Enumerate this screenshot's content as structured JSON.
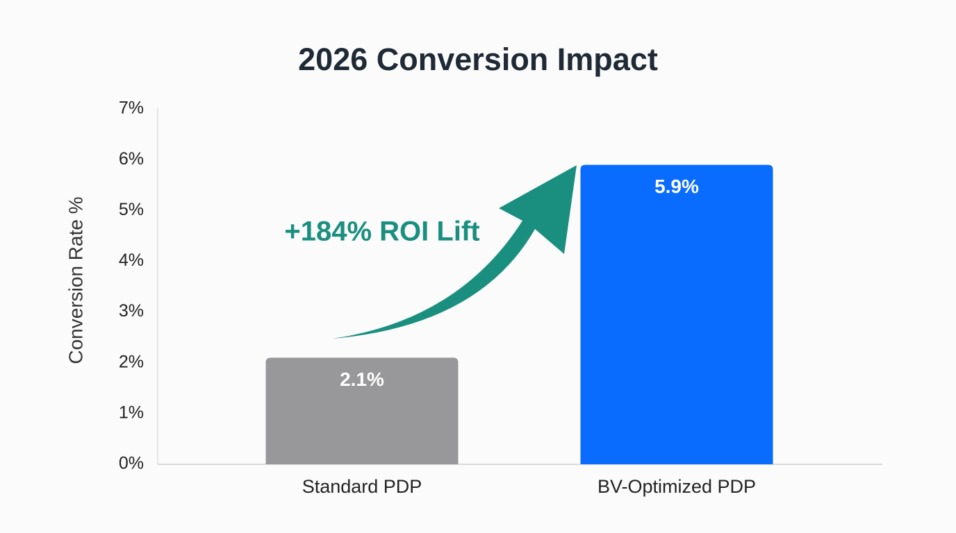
{
  "chart_data": {
    "type": "bar",
    "title": "2026 Conversion Impact",
    "y_label": "Conversion Rate %",
    "annotation": "+184% ROI Lift",
    "categories": [
      "Standard PDP",
      "BV-Optimized PDP"
    ],
    "values": [
      2.1,
      5.9
    ],
    "value_labels": [
      "2.1%",
      "5.9%"
    ],
    "colors": [
      "#98989a",
      "#0a6cff"
    ],
    "ylim": [
      0,
      7
    ],
    "yticks": [
      {
        "value": 0,
        "label": "0%"
      },
      {
        "value": 1,
        "label": "1%"
      },
      {
        "value": 2,
        "label": "2%"
      },
      {
        "value": 3,
        "label": "3%"
      },
      {
        "value": 4,
        "label": "4%"
      },
      {
        "value": 5,
        "label": "5%"
      },
      {
        "value": 6,
        "label": "6%"
      },
      {
        "value": 7,
        "label": "7%"
      }
    ],
    "grid": false
  }
}
